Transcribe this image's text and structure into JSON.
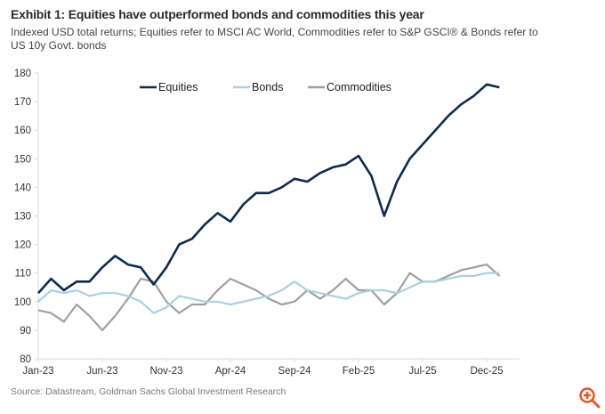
{
  "title": "Exhibit 1: Equities have outperformed bonds and commodities this year",
  "subtitle": "Indexed USD total returns; Equities refer to MSCI AC World, Commodities refer to S&P GSCI® & Bonds refer to US 10y Govt. bonds",
  "source": "Source: Datastream, Goldman Sachs Global Investment Research",
  "colors": {
    "equities": "#0d2b4e",
    "bonds": "#a9cfe9",
    "commodities": "#a0a0a0",
    "zoom": "#e4572e"
  },
  "chart_data": {
    "type": "line",
    "title": "Exhibit 1: Equities have outperformed bonds and commodities this year",
    "xlabel": "",
    "ylabel": "",
    "ylim": [
      80,
      180
    ],
    "yticks": [
      80,
      90,
      100,
      110,
      120,
      130,
      140,
      150,
      160,
      170,
      180
    ],
    "xticks": [
      "Jan-23",
      "Jun-23",
      "Nov-23",
      "Apr-24",
      "Sep-24",
      "Feb-25",
      "Jul-25",
      "Dec-25"
    ],
    "legend_position": "top-center",
    "grid": false,
    "x_note": "monthly points starting Jan-23",
    "series": [
      {
        "name": "Equities",
        "values": [
          103,
          108,
          104,
          107,
          107,
          112,
          116,
          113,
          112,
          106,
          112,
          120,
          122,
          127,
          131,
          128,
          134,
          138,
          138,
          140,
          143,
          142,
          145,
          147,
          148,
          151,
          144,
          130,
          142,
          150,
          155,
          160,
          165,
          169,
          172,
          176,
          175
        ]
      },
      {
        "name": "Bonds",
        "values": [
          100,
          104,
          103,
          104,
          102,
          103,
          103,
          102,
          100,
          96,
          98,
          102,
          101,
          100,
          100,
          99,
          100,
          101,
          102,
          104,
          107,
          104,
          103,
          102,
          101,
          103,
          104,
          104,
          103,
          105,
          107,
          107,
          108,
          109,
          109,
          110,
          110
        ]
      },
      {
        "name": "Commodities",
        "values": [
          97,
          96,
          93,
          99,
          95,
          90,
          95,
          101,
          108,
          107,
          100,
          96,
          99,
          99,
          104,
          108,
          106,
          104,
          101,
          99,
          100,
          104,
          101,
          104,
          108,
          104,
          104,
          99,
          103,
          110,
          107,
          107,
          109,
          111,
          112,
          113,
          109
        ]
      }
    ]
  }
}
